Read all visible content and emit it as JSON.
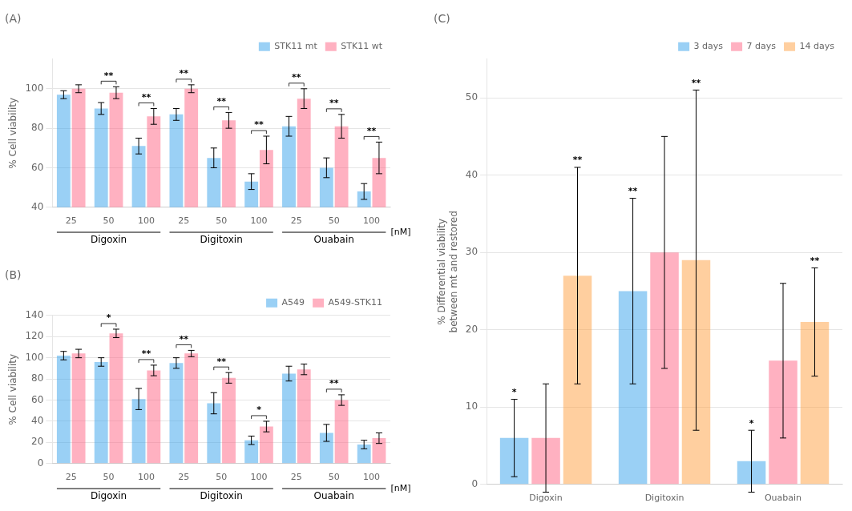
{
  "chart_data": [
    {
      "type": "bar",
      "title": "(A)",
      "ylabel": "% Cell viability",
      "categories": [
        "25",
        "50",
        "100",
        "25",
        "50",
        "100",
        "25",
        "50",
        "100"
      ],
      "groups": [
        "Digoxin",
        "Digitoxin",
        "Ouabain"
      ],
      "annotations": [
        "[nM]"
      ],
      "series": [
        {
          "name": "STK11 mt",
          "values": [
            97,
            90,
            71,
            87,
            65,
            53,
            81,
            60,
            48
          ],
          "errors": [
            2,
            3,
            4,
            3,
            5,
            4,
            5,
            5,
            4
          ]
        },
        {
          "name": "STK11 wt",
          "values": [
            100,
            98,
            86,
            100,
            84,
            69,
            95,
            81,
            65
          ],
          "errors": [
            2,
            3,
            4,
            2,
            4,
            7,
            5,
            6,
            8
          ]
        }
      ],
      "significance": [
        null,
        "**",
        "**",
        "**",
        "**",
        "**",
        "**",
        "**",
        "**"
      ],
      "ylim": [
        40,
        115
      ],
      "yticks": [
        40,
        60,
        80,
        100
      ],
      "grid": true,
      "legend": "upper right"
    },
    {
      "type": "bar",
      "title": "(B)",
      "ylabel": "% Cell viability",
      "categories": [
        "25",
        "50",
        "100",
        "25",
        "50",
        "100",
        "25",
        "50",
        "100"
      ],
      "groups": [
        "Digoxin",
        "Digitoxin",
        "Ouabain"
      ],
      "annotations": [
        "[nM]"
      ],
      "series": [
        {
          "name": "A549",
          "values": [
            102,
            96,
            61,
            95,
            57,
            22,
            85,
            29,
            18
          ],
          "errors": [
            4,
            4,
            10,
            5,
            10,
            4,
            7,
            8,
            4
          ]
        },
        {
          "name": "A549-STK11",
          "values": [
            104,
            123,
            88,
            104,
            81,
            35,
            89,
            60,
            24
          ],
          "errors": [
            4,
            4,
            5,
            3,
            5,
            5,
            5,
            5,
            5
          ]
        }
      ],
      "significance": [
        null,
        "*",
        "**",
        "**",
        "**",
        "*",
        null,
        "**",
        null
      ],
      "ylim": [
        0,
        140
      ],
      "yticks": [
        0,
        20,
        40,
        60,
        80,
        100,
        120,
        140
      ],
      "grid": true,
      "legend": "upper right"
    },
    {
      "type": "bar",
      "title": "(C)",
      "ylabel": "% Differential viability\nbetween mt and restored",
      "categories": [
        "Digoxin",
        "Digitoxin",
        "Ouabain"
      ],
      "series": [
        {
          "name": "3 days",
          "values": [
            6,
            25,
            3
          ],
          "errors": [
            5,
            12,
            4
          ],
          "significance": [
            "*",
            "**",
            "*"
          ]
        },
        {
          "name": "7 days",
          "values": [
            6,
            30,
            16
          ],
          "errors": [
            7,
            15,
            10
          ]
        },
        {
          "name": "14 days",
          "values": [
            27,
            29,
            21
          ],
          "errors": [
            14,
            22,
            7
          ],
          "significance": [
            "**",
            "**",
            "**"
          ]
        }
      ],
      "ylim": [
        0,
        55
      ],
      "yticks": [
        0,
        10,
        20,
        30,
        40,
        50
      ],
      "grid": true,
      "legend": "upper right"
    }
  ]
}
